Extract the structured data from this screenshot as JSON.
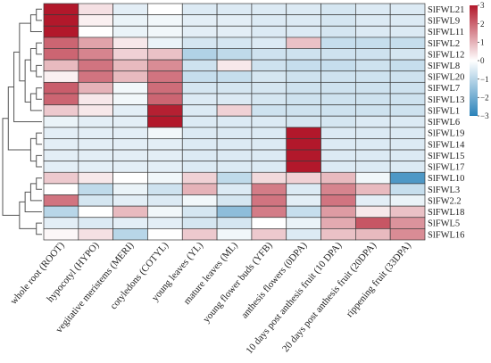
{
  "chart_data": {
    "type": "heatmap",
    "title": "",
    "rows": [
      "SlFWL21",
      "SlFWL9",
      "SlFWL11",
      "SlFWL2",
      "SlFWL12",
      "SlFWL8",
      "SlFWL20",
      "SlFWL7",
      "SlFWL13",
      "SlFWL1",
      "SlFWL6",
      "SlFWL19",
      "SlFWL14",
      "SlFWL15",
      "SlFWL17",
      "SlFWL10",
      "SlFWL3",
      "SlFW2.2",
      "SlFWL18",
      "SlFWL5",
      "SlFWL16"
    ],
    "columns": [
      "whole root (ROOT)",
      "hypocotyl (HYPO)",
      "vegitative meristems (MERI)",
      "cotyledons (COTYL)",
      "young leaves (YL)",
      "mature leaves (ML)",
      "young flower buds (YFB)",
      "anthesis flowers (0DPA)",
      "10 days post anthesis fruit (10 DPA)",
      "20 days post anthesis fruit (20DPA)",
      "rippening fruit (33DPA)"
    ],
    "values": [
      [
        3.0,
        0.4,
        -0.4,
        0.0,
        -0.5,
        -0.5,
        -0.5,
        -0.5,
        -0.6,
        -0.5,
        -0.5
      ],
      [
        3.0,
        0.2,
        -0.3,
        -0.2,
        -0.4,
        -0.4,
        -0.5,
        -0.5,
        -0.6,
        -0.5,
        -0.5
      ],
      [
        3.0,
        0.0,
        -0.3,
        -0.2,
        -0.4,
        -0.4,
        -0.5,
        -0.5,
        -0.6,
        -0.5,
        -0.5
      ],
      [
        2.0,
        1.2,
        0.3,
        -0.3,
        -0.6,
        -0.6,
        -0.5,
        0.8,
        -0.8,
        -0.8,
        -0.8
      ],
      [
        2.0,
        1.6,
        0.6,
        0.8,
        -1.1,
        -0.9,
        -0.7,
        -0.7,
        -0.7,
        -0.7,
        -0.6
      ],
      [
        0.9,
        1.8,
        0.9,
        1.5,
        -0.7,
        0.3,
        -0.7,
        -0.8,
        -0.8,
        -0.7,
        -0.8
      ],
      [
        0.2,
        1.8,
        0.9,
        1.8,
        -0.8,
        -0.8,
        -0.6,
        -0.7,
        -0.7,
        -0.7,
        -0.7
      ],
      [
        2.1,
        1.0,
        -0.2,
        1.9,
        -0.6,
        -0.6,
        -0.6,
        -0.7,
        -0.7,
        -0.7,
        -0.7
      ],
      [
        2.0,
        0.3,
        -0.2,
        2.0,
        -0.5,
        -0.5,
        -0.6,
        -0.7,
        -0.7,
        -0.7,
        -0.7
      ],
      [
        0.7,
        0.3,
        -0.4,
        2.9,
        -0.5,
        0.6,
        -0.7,
        -0.7,
        -0.7,
        -0.7,
        -0.7
      ],
      [
        -0.3,
        -0.4,
        -0.4,
        3.0,
        -0.5,
        -0.5,
        -0.5,
        -0.6,
        -0.6,
        -0.5,
        -0.5
      ],
      [
        -0.4,
        -0.4,
        -0.4,
        -0.2,
        -0.5,
        -0.5,
        -0.5,
        3.0,
        -0.5,
        -0.5,
        -0.5
      ],
      [
        -0.4,
        -0.4,
        -0.4,
        -0.4,
        -0.5,
        -0.5,
        -0.5,
        3.0,
        -0.5,
        -0.5,
        -0.5
      ],
      [
        -0.4,
        -0.4,
        -0.4,
        -0.4,
        -0.5,
        -0.5,
        -0.5,
        3.0,
        -0.5,
        -0.5,
        -0.5
      ],
      [
        -0.4,
        -0.4,
        -0.4,
        -0.4,
        -0.5,
        -0.5,
        -0.5,
        3.0,
        -0.5,
        -0.5,
        -0.5
      ],
      [
        0.7,
        0.3,
        0.0,
        -0.2,
        0.6,
        -0.9,
        0.5,
        0.6,
        0.9,
        -0.2,
        -2.5
      ],
      [
        0.0,
        -0.9,
        -0.3,
        -0.7,
        1.0,
        -0.5,
        1.7,
        -0.5,
        1.6,
        0.9,
        -0.8
      ],
      [
        1.8,
        -0.6,
        -0.4,
        -0.5,
        -0.2,
        -0.6,
        1.8,
        -0.4,
        1.8,
        -0.4,
        -0.3
      ],
      [
        -1.0,
        0.0,
        0.9,
        -0.2,
        -0.6,
        -1.6,
        1.7,
        -0.8,
        1.3,
        0.3,
        0.8
      ],
      [
        -0.4,
        -0.5,
        -0.4,
        -0.4,
        -0.6,
        -0.6,
        0.0,
        -0.3,
        1.1,
        2.2,
        1.4
      ],
      [
        0.1,
        0.4,
        -1.0,
        0.0,
        0.7,
        -0.2,
        0.7,
        -0.5,
        0.8,
        0.9,
        1.5
      ]
    ],
    "colorbar": {
      "ticks": [
        3,
        2,
        1,
        0,
        -1,
        -2,
        -3
      ],
      "range": [
        -3,
        3
      ]
    },
    "colors": {
      "high": "#b2182b",
      "mid": "#ffffff",
      "low": "#2b83ba"
    }
  }
}
